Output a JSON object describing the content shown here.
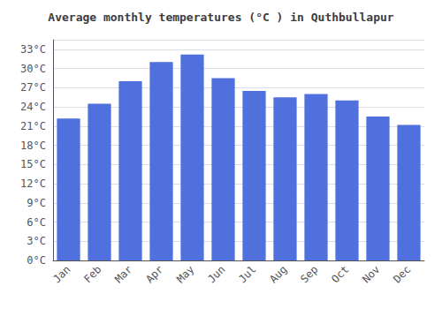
{
  "chart_data": {
    "type": "bar",
    "title": "Average monthly temperatures (°C ) in Quthbullapur",
    "categories": [
      "Jan",
      "Feb",
      "Mar",
      "Apr",
      "May",
      "Jun",
      "Jul",
      "Aug",
      "Sep",
      "Oct",
      "Nov",
      "Dec"
    ],
    "values": [
      22.2,
      24.5,
      28.0,
      31.0,
      32.2,
      28.5,
      26.5,
      25.5,
      26.0,
      25.0,
      22.5,
      21.2
    ],
    "ylim": [
      0,
      34.5
    ],
    "yticks": [
      {
        "value": 0,
        "label": "0°C"
      },
      {
        "value": 3,
        "label": "3°C"
      },
      {
        "value": 6,
        "label": "6°C"
      },
      {
        "value": 9,
        "label": "9°C"
      },
      {
        "value": 12,
        "label": "12°C"
      },
      {
        "value": 15,
        "label": "15°C"
      },
      {
        "value": 18,
        "label": "18°C"
      },
      {
        "value": 21,
        "label": "21°C"
      },
      {
        "value": 24,
        "label": "24°C"
      },
      {
        "value": 27,
        "label": "27°C"
      },
      {
        "value": 30,
        "label": "30°C"
      },
      {
        "value": 33,
        "label": "33°C"
      }
    ],
    "grid": true
  }
}
